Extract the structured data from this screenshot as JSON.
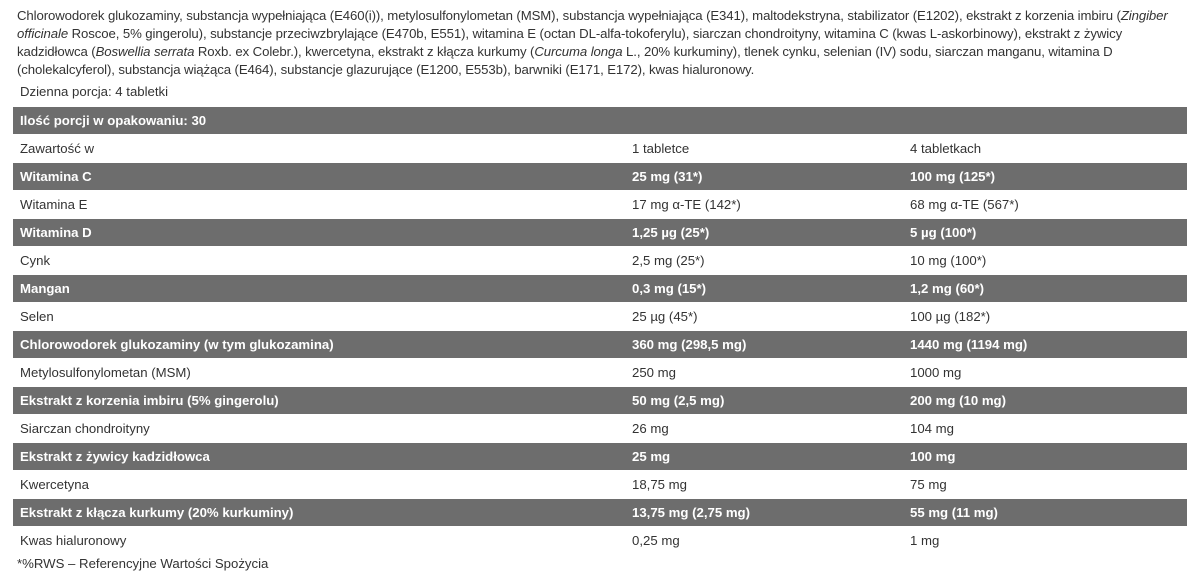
{
  "ingredients": [
    {
      "text": "Chlorowodorek glukozaminy, substancja wypełniająca (E460(i)), metylosulfonylometan (MSM), substancja wypełniająca (E341), maltodekstryna, stabilizator (E1202), ekstrakt z korzenia imbiru (",
      "italic": false
    },
    {
      "text": "Zingiber officinale",
      "italic": true
    },
    {
      "text": " Roscoe, 5% gingerolu), substancje przeciwzbrylające (E470b, E551), witamina E (octan DL-alfa-tokoferylu), siarczan chondroityny, witamina C (kwas L-askorbinowy), ekstrakt z żywicy kadzidłowca (",
      "italic": false
    },
    {
      "text": "Boswellia serrata",
      "italic": true
    },
    {
      "text": " Roxb. ex Colebr.), kwercetyna, ekstrakt z kłącza kurkumy (",
      "italic": false
    },
    {
      "text": "Curcuma longa",
      "italic": true
    },
    {
      "text": " L., 20% kurkuminy), tlenek cynku, selenian (IV) sodu, siarczan manganu, witamina D (cholekalcyferol), substancja wiążąca (E464), substancje glazurujące (E1200, E553b), barwniki (E171, E172), kwas hialuronowy.",
      "italic": false
    }
  ],
  "daily_portion": "Dzienna porcja: 4 tabletki",
  "table": {
    "title": "Ilość porcji w opakowaniu: 30",
    "header": [
      "Zawartość w",
      "1 tabletce",
      "4 tabletkach"
    ],
    "rows": [
      [
        "Witamina C",
        "25 mg (31*)",
        "100 mg (125*)"
      ],
      [
        "Witamina E",
        "17 mg α-TE (142*)",
        "68 mg α-TE (567*)"
      ],
      [
        "Witamina D",
        "1,25 µg (25*)",
        "5 µg (100*)"
      ],
      [
        "Cynk",
        "2,5 mg (25*)",
        "10 mg (100*)"
      ],
      [
        "Mangan",
        "0,3 mg (15*)",
        "1,2 mg (60*)"
      ],
      [
        "Selen",
        "25 µg (45*)",
        "100 µg (182*)"
      ],
      [
        "Chlorowodorek glukozaminy (w tym glukozamina)",
        "360 mg (298,5 mg)",
        "1440 mg (1194 mg)"
      ],
      [
        "Metylosulfonylometan (MSM)",
        "250 mg",
        "1000 mg"
      ],
      [
        "Ekstrakt z korzenia imbiru (5% gingerolu)",
        "50 mg (2,5 mg)",
        "200 mg (10 mg)"
      ],
      [
        "Siarczan chondroityny",
        "26 mg",
        "104 mg"
      ],
      [
        "Ekstrakt z żywicy kadzidłowca",
        "25 mg",
        "100 mg"
      ],
      [
        "Kwercetyna",
        "18,75 mg",
        "75 mg"
      ],
      [
        "Ekstrakt z kłącza kurkumy (20% kurkuminy)",
        "13,75 mg (2,75 mg)",
        "55 mg (11 mg)"
      ],
      [
        "Kwas hialuronowy",
        "0,25 mg",
        "1 mg"
      ]
    ]
  },
  "footnote": "*%RWS – Referencyjne Wartości Spożycia",
  "colors": {
    "row_gray": "#6d6d6d",
    "text": "#333333"
  }
}
